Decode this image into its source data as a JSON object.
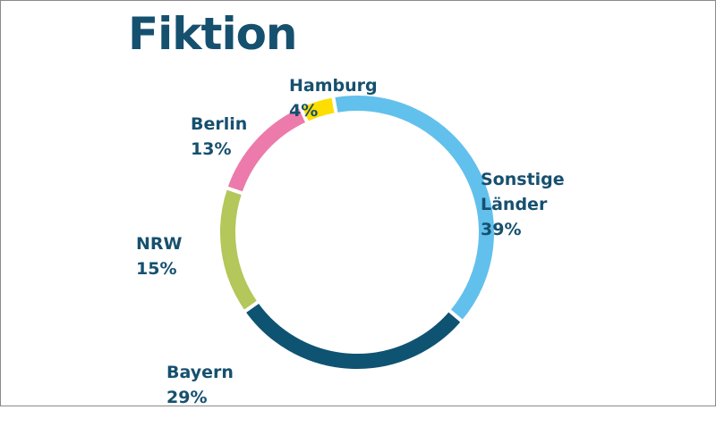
{
  "chart_data": {
    "type": "pie",
    "title": "Fiktion",
    "categories": [
      "Sonstige\nLänder",
      "Bayern",
      "NRW",
      "Berlin",
      "Hamburg"
    ],
    "values": [
      39,
      29,
      15,
      13,
      4
    ],
    "value_labels": [
      "39%",
      "29%",
      "15%",
      "13%",
      "4%"
    ],
    "colors": [
      "#62c0ec",
      "#0f5372",
      "#b3c75a",
      "#ec7bab",
      "#fedd00"
    ],
    "legend": "none"
  }
}
